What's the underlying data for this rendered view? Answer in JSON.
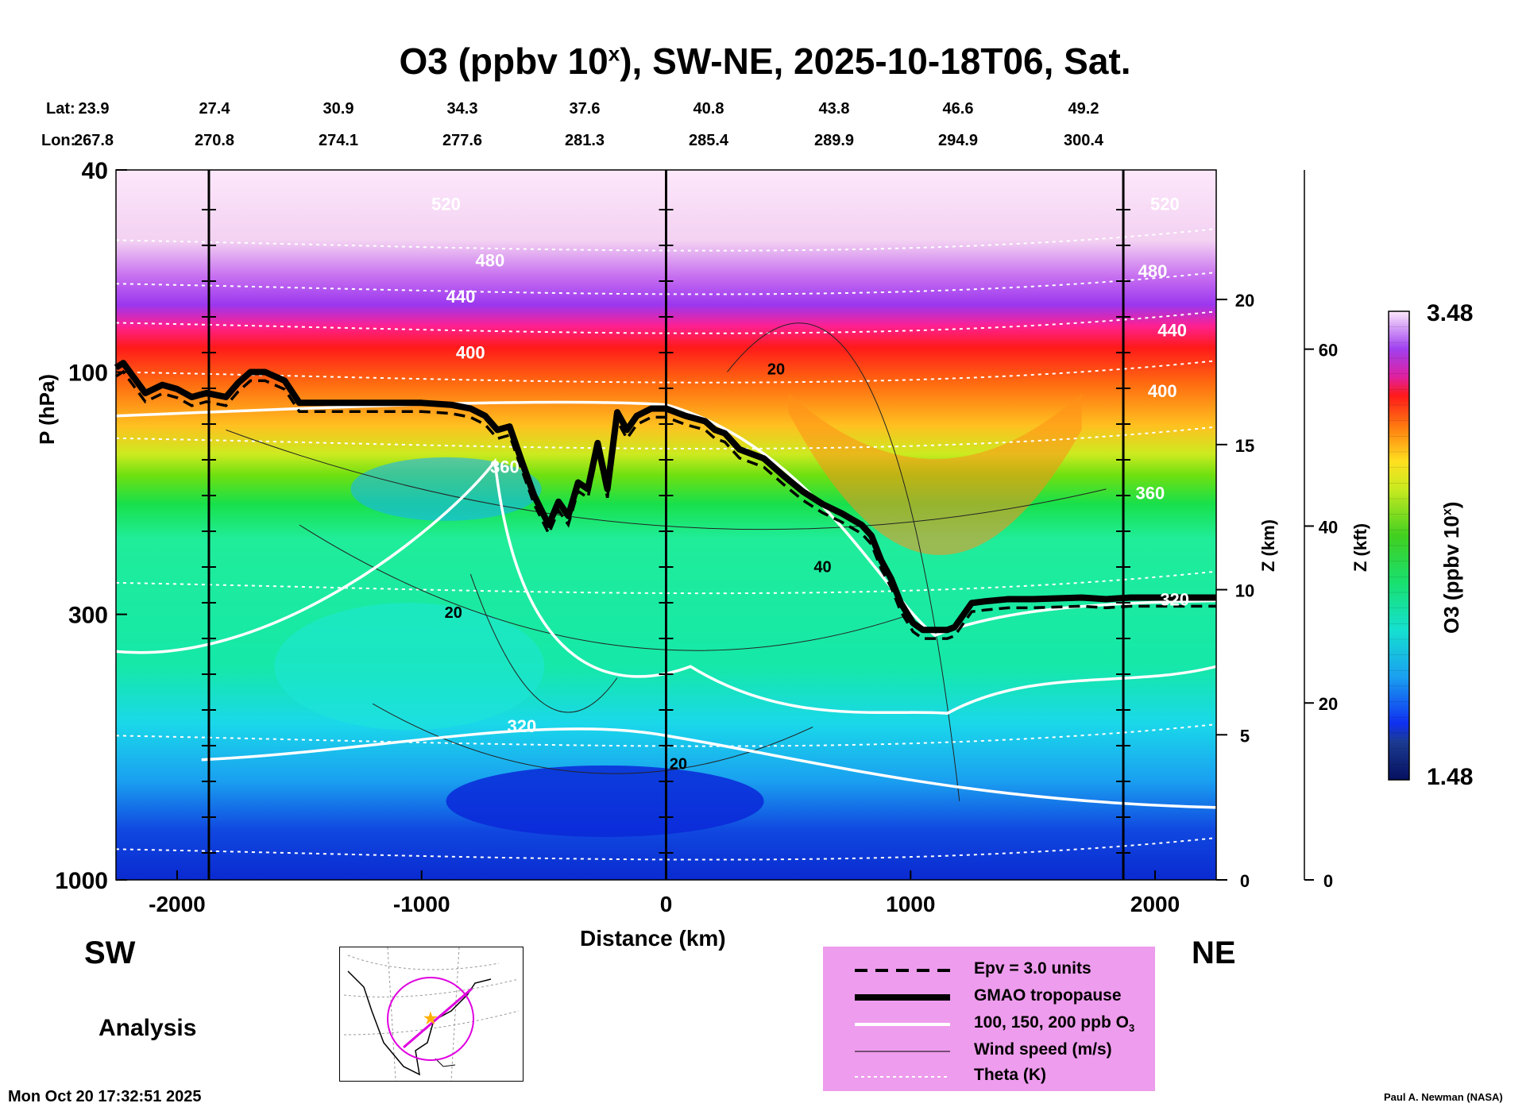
{
  "title_main": "O3 (ppbv 10",
  "title_sup": "x",
  "title_rest": "), SW-NE, 2025-10-18T06, Sat.",
  "lat_label": "Lat:",
  "lon_label": "Lon:",
  "latitudes": [
    "23.9",
    "27.4",
    "30.9",
    "34.3",
    "37.6",
    "40.8",
    "43.8",
    "46.6",
    "49.2"
  ],
  "longitudes": [
    "267.8",
    "270.8",
    "274.1",
    "277.6",
    "281.3",
    "285.4",
    "289.9",
    "294.9",
    "300.4"
  ],
  "left_dir": "SW",
  "right_dir": "NE",
  "analysis_label": "Analysis",
  "timestamp": "Mon Oct 20 17:32:51 2025",
  "credit": "Paul A. Newman (NASA)",
  "colorbar": {
    "max_label": "3.48",
    "min_label": "1.48",
    "title": "O3 (ppbv 10",
    "title_sup": "x",
    "title_end": ")"
  },
  "legend": {
    "items": [
      {
        "name": "epv",
        "label": "Epv = 3.0 units"
      },
      {
        "name": "tropopause",
        "label": "GMAO tropopause"
      },
      {
        "name": "ozone",
        "label": "100, 150, 200 ppb O",
        "sub": "3"
      },
      {
        "name": "wind",
        "label": "Wind speed (m/s)"
      },
      {
        "name": "theta",
        "label": "Theta (K)"
      }
    ]
  },
  "chart_data": {
    "type": "contour-cross-section",
    "title": "O3 (ppbv 10^x), SW-NE, 2025-10-18T06, Sat.",
    "xlabel": "Distance (km)",
    "ylabel": "P (hPa)",
    "y2label": "Z (km)",
    "y3label": "Z (kft)",
    "xlim": [
      -2250,
      2250
    ],
    "ylim": [
      1000,
      40
    ],
    "x_ticks": [
      -2000,
      -1000,
      0,
      1000,
      2000
    ],
    "x_tick_labels": [
      "-2000",
      "-1000",
      "0",
      "1000",
      "2000"
    ],
    "y_ticks": [
      40,
      100,
      300,
      1000
    ],
    "y_tick_labels": [
      "40",
      "100",
      "300",
      "1000"
    ],
    "z_km_ticks": [
      0,
      5,
      10,
      15,
      20
    ],
    "z_km_labels": [
      "0",
      "5",
      "10",
      "15",
      "20"
    ],
    "z_kft_ticks": [
      0,
      20,
      40,
      60
    ],
    "z_kft_labels": [
      "0",
      "20",
      "40",
      "60"
    ],
    "vertical_markers_km": [
      -1870,
      0,
      1870
    ],
    "colorbar_range": [
      1.48,
      3.48
    ],
    "theta_labels": [
      {
        "value": "520",
        "x": -900,
        "p": 48
      },
      {
        "value": "480",
        "x": -720,
        "p": 62
      },
      {
        "value": "440",
        "x": -840,
        "p": 73
      },
      {
        "value": "400",
        "x": -800,
        "p": 94
      },
      {
        "value": "360",
        "x": -660,
        "p": 158
      },
      {
        "value": "320",
        "x": -590,
        "p": 512
      },
      {
        "value": "520",
        "x": 2040,
        "p": 48
      },
      {
        "value": "480",
        "x": 1990,
        "p": 65
      },
      {
        "value": "440",
        "x": 2070,
        "p": 85
      },
      {
        "value": "400",
        "x": 2030,
        "p": 112
      },
      {
        "value": "360",
        "x": 1980,
        "p": 178
      },
      {
        "value": "320",
        "x": 2080,
        "p": 288
      }
    ],
    "wind_labels": [
      {
        "value": "20",
        "x": -870,
        "p": 305
      },
      {
        "value": "20",
        "x": 450,
        "p": 101
      },
      {
        "value": "40",
        "x": 640,
        "p": 248
      },
      {
        "value": "20",
        "x": 50,
        "p": 605
      }
    ],
    "tropopause": [
      [
        -2250,
        98
      ],
      [
        -2220,
        96
      ],
      [
        -2180,
        102
      ],
      [
        -2130,
        110
      ],
      [
        -2060,
        106
      ],
      [
        -2000,
        108
      ],
      [
        -1940,
        112
      ],
      [
        -1880,
        110
      ],
      [
        -1800,
        112
      ],
      [
        -1750,
        105
      ],
      [
        -1700,
        100
      ],
      [
        -1640,
        100
      ],
      [
        -1560,
        104
      ],
      [
        -1500,
        115
      ],
      [
        -1000,
        115
      ],
      [
        -880,
        116
      ],
      [
        -800,
        118
      ],
      [
        -740,
        122
      ],
      [
        -690,
        130
      ],
      [
        -640,
        128
      ],
      [
        -590,
        150
      ],
      [
        -540,
        175
      ],
      [
        -480,
        200
      ],
      [
        -440,
        180
      ],
      [
        -400,
        192
      ],
      [
        -360,
        165
      ],
      [
        -320,
        170
      ],
      [
        -280,
        138
      ],
      [
        -240,
        170
      ],
      [
        -200,
        120
      ],
      [
        -160,
        130
      ],
      [
        -120,
        122
      ],
      [
        -60,
        118
      ],
      [
        0,
        118
      ],
      [
        80,
        122
      ],
      [
        160,
        125
      ],
      [
        200,
        130
      ],
      [
        240,
        132
      ],
      [
        300,
        142
      ],
      [
        400,
        148
      ],
      [
        480,
        160
      ],
      [
        560,
        172
      ],
      [
        640,
        182
      ],
      [
        720,
        190
      ],
      [
        760,
        195
      ],
      [
        800,
        200
      ],
      [
        840,
        210
      ],
      [
        880,
        235
      ],
      [
        920,
        255
      ],
      [
        960,
        285
      ],
      [
        1010,
        312
      ],
      [
        1050,
        322
      ],
      [
        1150,
        322
      ],
      [
        1180,
        318
      ],
      [
        1250,
        285
      ],
      [
        1300,
        283
      ],
      [
        1400,
        280
      ],
      [
        1500,
        280
      ],
      [
        1600,
        279
      ],
      [
        1700,
        278
      ],
      [
        1800,
        280
      ],
      [
        1900,
        278
      ],
      [
        2250,
        278
      ]
    ]
  }
}
